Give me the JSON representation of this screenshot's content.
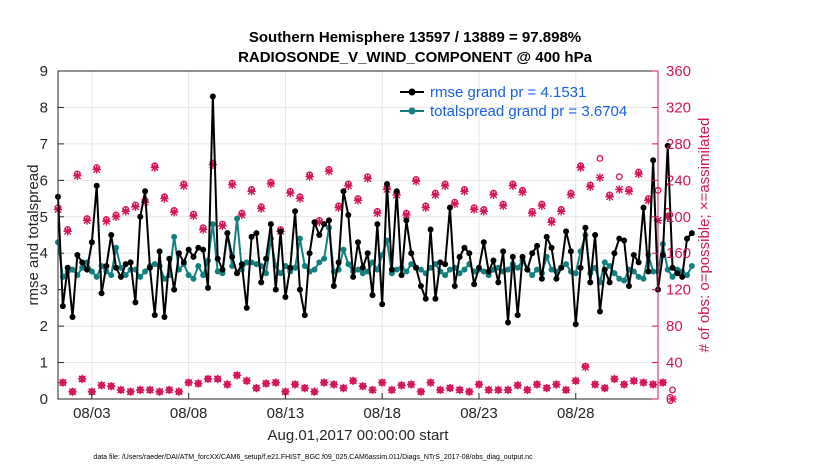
{
  "chart_data": {
    "type": "line",
    "title_line1": "Southern Hemisphere 13597 / 13889 = 97.898%",
    "title_line2": "RADIOSONDE_V_WIND_COMPONENT @ 400 hPa",
    "ylabel_left": "rmse and totalspread",
    "ylabel_right": "# of obs: o=possible; ×=assimilated",
    "xlabel": "Aug.01,2017 00:00:00 start",
    "footer": "data file: /Users/raeder/DAI/ATM_forcXX/CAM6_setup/f.e21.FHIST_BGC.f09_025.CAM6assim.011/Diags_NTrS_2017-08/obs_diag_output.nc",
    "ylim_left": [
      0,
      9
    ],
    "ylim_right": [
      0,
      360
    ],
    "xlim": [
      1.25,
      32.25
    ],
    "yticks_left": [
      "0",
      "1",
      "2",
      "3",
      "4",
      "5",
      "6",
      "7",
      "8",
      "9"
    ],
    "yticks_right": [
      "0",
      "40",
      "80",
      "120",
      "160",
      "200",
      "240",
      "280",
      "320",
      "360"
    ],
    "xticks": [
      {
        "label": "08/03",
        "value": 3
      },
      {
        "label": "08/08",
        "value": 8
      },
      {
        "label": "08/13",
        "value": 13
      },
      {
        "label": "08/18",
        "value": 18
      },
      {
        "label": "08/23",
        "value": 23
      },
      {
        "label": "08/28",
        "value": 28
      }
    ],
    "x_start": 1.25,
    "x_step": 0.25,
    "colors": {
      "rmse": "#000000",
      "spread": "#138080",
      "obs": "#d4145a",
      "legend_text": "#1a5ee8"
    },
    "legend": [
      {
        "label": "rmse grand pr = 4.1531",
        "series": "rmse"
      },
      {
        "label": "totalspread grand pr = 3.6704",
        "series": "totalspread"
      }
    ],
    "series": [
      {
        "name": "rmse",
        "axis": "left",
        "values": [
          5.55,
          2.55,
          3.6,
          2.25,
          3.95,
          3.75,
          3.55,
          4.3,
          5.85,
          2.9,
          3.65,
          4.5,
          3.6,
          3.35,
          3.7,
          3.75,
          2.65,
          5.0,
          5.7,
          3.6,
          2.3,
          4.05,
          2.25,
          3.85,
          3.0,
          4.0,
          3.75,
          4.1,
          3.9,
          4.15,
          4.1,
          3.05,
          8.3,
          3.85,
          3.55,
          4.55,
          3.9,
          3.45,
          3.7,
          2.5,
          4.45,
          4.55,
          3.2,
          3.85,
          4.8,
          3.0,
          4.6,
          2.8,
          3.6,
          5.15,
          3.0,
          2.3,
          4.0,
          4.85,
          4.5,
          4.8,
          4.9,
          3.1,
          3.75,
          5.7,
          5.05,
          3.35,
          4.3,
          3.6,
          4.0,
          2.85,
          4.8,
          2.6,
          5.9,
          3.55,
          5.7,
          3.4,
          4.9,
          4.0,
          3.6,
          3.1,
          2.75,
          4.65,
          2.75,
          3.75,
          3.7,
          5.25,
          3.1,
          3.9,
          4.15,
          4.0,
          3.15,
          3.6,
          4.3,
          3.5,
          3.8,
          3.2,
          4.05,
          2.1,
          3.9,
          2.3,
          3.9,
          3.55,
          4.0,
          4.2,
          3.3,
          4.45,
          4.15,
          3.3,
          3.6,
          4.6,
          4.05,
          2.05,
          3.6,
          4.7,
          3.2,
          4.5,
          2.4,
          3.55,
          3.2,
          4.0,
          4.4,
          4.35,
          3.1,
          3.95,
          3.75,
          5.25,
          3.5,
          6.55,
          3.0,
          3.95,
          6.95,
          3.6,
          3.45,
          3.35,
          4.4,
          4.55
        ]
      },
      {
        "name": "totalspread",
        "axis": "left",
        "values": [
          4.3,
          3.35,
          3.5,
          3.55,
          3.4,
          3.6,
          3.75,
          3.5,
          3.35,
          3.65,
          3.5,
          3.4,
          4.15,
          3.6,
          3.4,
          3.55,
          3.55,
          3.35,
          3.5,
          3.65,
          3.7,
          3.65,
          3.3,
          3.4,
          4.45,
          3.55,
          3.7,
          3.4,
          3.3,
          3.65,
          3.4,
          3.8,
          4.8,
          3.5,
          3.45,
          4.55,
          3.65,
          4.95,
          3.55,
          3.75,
          3.75,
          3.7,
          3.65,
          3.45,
          4.4,
          3.65,
          3.45,
          3.65,
          3.5,
          3.6,
          4.4,
          3.65,
          3.5,
          3.55,
          3.75,
          3.85,
          4.7,
          3.5,
          3.55,
          4.1,
          3.7,
          3.5,
          3.55,
          3.45,
          3.5,
          3.75,
          3.55,
          3.95,
          4.35,
          3.45,
          3.55,
          3.6,
          3.5,
          3.7,
          3.6,
          3.55,
          3.45,
          3.6,
          3.7,
          3.5,
          3.4,
          3.55,
          3.6,
          3.45,
          3.55,
          3.7,
          3.5,
          3.55,
          3.5,
          3.4,
          3.55,
          3.6,
          3.5,
          3.55,
          3.7,
          3.6,
          3.8,
          3.55,
          3.4,
          3.55,
          3.45,
          3.9,
          3.55,
          3.5,
          3.6,
          3.7,
          3.5,
          3.45,
          4.05,
          4.5,
          3.45,
          3.6,
          3.2,
          3.75,
          3.65,
          3.45,
          3.3,
          3.25,
          3.55,
          3.5,
          3.35,
          3.3,
          3.95,
          3.5,
          3.5,
          4.25,
          3.55,
          3.35,
          3.55,
          3.5,
          3.4,
          3.65
        ]
      },
      {
        "name": "obs_possible",
        "axis": "right",
        "marker": "o",
        "values": [
          210,
          18,
          186,
          8,
          247,
          22,
          198,
          8,
          254,
          15,
          197,
          14,
          202,
          10,
          208,
          8,
          213,
          10,
          218,
          10,
          256,
          8,
          222,
          10,
          207,
          8,
          236,
          18,
          203,
          17,
          188,
          22,
          259,
          22,
          192,
          16,
          237,
          26,
          204,
          20,
          230,
          12,
          211,
          17,
          238,
          18,
          186,
          8,
          228,
          16,
          222,
          12,
          246,
          8,
          196,
          18,
          252,
          16,
          212,
          12,
          236,
          20,
          220,
          14,
          244,
          10,
          206,
          18,
          232,
          10,
          226,
          15,
          204,
          16,
          241,
          8,
          212,
          18,
          226,
          10,
          236,
          12,
          216,
          10,
          230,
          8,
          210,
          16,
          208,
          10,
          226,
          10,
          214,
          10,
          236,
          15,
          229,
          10,
          206,
          16,
          214,
          12,
          196,
          16,
          208,
          10,
          226,
          20,
          256,
          36,
          235,
          16,
          264,
          12,
          224,
          22,
          244,
          16,
          230,
          20,
          249,
          18,
          220,
          16,
          229,
          18,
          206,
          10
        ]
      },
      {
        "name": "obs_assimilated",
        "axis": "right",
        "marker": "x",
        "values": [
          208,
          18,
          184,
          8,
          245,
          22,
          196,
          8,
          252,
          15,
          195,
          14,
          200,
          10,
          206,
          8,
          211,
          10,
          216,
          10,
          254,
          8,
          220,
          10,
          205,
          8,
          234,
          18,
          201,
          17,
          186,
          22,
          257,
          22,
          190,
          16,
          235,
          26,
          202,
          20,
          228,
          12,
          209,
          17,
          236,
          18,
          184,
          8,
          226,
          16,
          220,
          12,
          244,
          8,
          194,
          18,
          250,
          16,
          210,
          12,
          234,
          20,
          218,
          14,
          242,
          10,
          204,
          18,
          230,
          10,
          224,
          15,
          202,
          16,
          239,
          8,
          210,
          18,
          224,
          10,
          234,
          12,
          214,
          10,
          228,
          8,
          208,
          16,
          206,
          10,
          224,
          10,
          212,
          10,
          234,
          15,
          227,
          10,
          204,
          16,
          212,
          12,
          194,
          16,
          206,
          10,
          224,
          20,
          254,
          35,
          233,
          16,
          243,
          12,
          222,
          22,
          230,
          16,
          228,
          20,
          247,
          18,
          218,
          16,
          196,
          18,
          200,
          0
        ]
      }
    ]
  }
}
